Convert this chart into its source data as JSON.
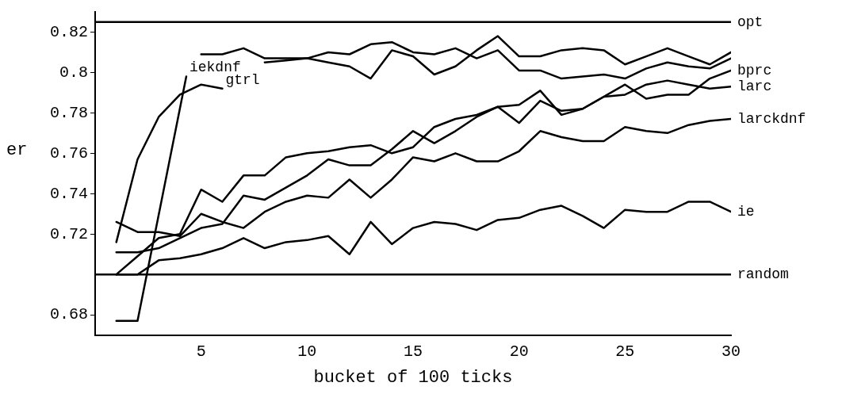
{
  "chart_data": {
    "type": "line",
    "xlabel": "bucket of 100 ticks",
    "ylabel": "er",
    "marker": "none",
    "x": [
      1,
      2,
      3,
      4,
      5,
      6,
      7,
      8,
      9,
      10,
      11,
      12,
      13,
      14,
      15,
      16,
      17,
      18,
      19,
      20,
      21,
      22,
      23,
      24,
      25,
      26,
      27,
      28,
      29,
      30
    ],
    "xlim": [
      0,
      30
    ],
    "xticks": [
      5,
      10,
      15,
      20,
      25,
      30
    ],
    "ylim": [
      0.67,
      0.83
    ],
    "yticks": [
      0.68,
      0.72,
      0.74,
      0.76,
      0.78,
      {
        "value": 0.8,
        "label": "0.8"
      },
      0.82
    ],
    "series": [
      {
        "name": "opt",
        "color": "#000000",
        "x": [
          0,
          30
        ],
        "values": [
          0.825,
          0.825
        ]
      },
      {
        "name": "gtrl",
        "color": "#000000",
        "values": [
          0.716,
          0.757,
          0.778,
          0.789,
          0.794,
          0.792,
          null,
          0.805,
          0.806,
          0.807,
          0.805,
          0.803,
          0.797,
          0.811,
          0.808,
          0.799,
          0.803,
          0.811,
          0.818,
          0.808,
          0.808,
          0.811,
          0.812,
          0.811,
          0.804,
          0.808,
          0.812,
          0.808,
          0.804,
          0.81
        ]
      },
      {
        "name": "iekdnf",
        "color": "#000000",
        "x": [
          1,
          2,
          4.3,
          4.6,
          5,
          6,
          7,
          8,
          9,
          10,
          11,
          12,
          13,
          14,
          15,
          16,
          17,
          18,
          19,
          20,
          21,
          22,
          23,
          24,
          25,
          26,
          27,
          28,
          29,
          30
        ],
        "values": [
          0.677,
          0.677,
          0.798,
          null,
          0.809,
          0.809,
          0.812,
          0.807,
          0.807,
          0.807,
          0.81,
          0.809,
          0.814,
          0.815,
          0.81,
          0.809,
          0.812,
          0.807,
          0.811,
          0.801,
          0.801,
          0.797,
          0.798,
          0.799,
          0.797,
          0.802,
          0.805,
          0.803,
          0.802,
          0.807
        ]
      },
      {
        "name": "bprc",
        "color": "#000000",
        "values": [
          0.711,
          0.711,
          0.713,
          0.718,
          0.723,
          0.725,
          0.739,
          0.737,
          0.743,
          0.749,
          0.757,
          0.754,
          0.754,
          0.762,
          0.771,
          0.765,
          0.771,
          0.778,
          0.783,
          0.775,
          0.786,
          0.781,
          0.782,
          0.788,
          0.794,
          0.787,
          0.789,
          0.789,
          0.797,
          0.801
        ]
      },
      {
        "name": "larc",
        "color": "#000000",
        "values": [
          0.7,
          0.709,
          0.718,
          0.72,
          0.742,
          0.736,
          0.749,
          0.749,
          0.758,
          0.76,
          0.761,
          0.763,
          0.764,
          0.76,
          0.763,
          0.773,
          0.777,
          0.779,
          0.783,
          0.784,
          0.791,
          0.779,
          0.782,
          0.788,
          0.789,
          0.794,
          0.796,
          0.794,
          0.792,
          0.793
        ]
      },
      {
        "name": "larckdnf",
        "color": "#000000",
        "values": [
          0.726,
          0.721,
          0.721,
          0.719,
          0.73,
          0.726,
          0.723,
          0.731,
          0.736,
          0.739,
          0.738,
          0.747,
          0.738,
          0.747,
          0.758,
          0.756,
          0.76,
          0.756,
          0.756,
          0.761,
          0.771,
          0.768,
          0.766,
          0.766,
          0.773,
          0.771,
          0.77,
          0.774,
          0.776,
          0.777
        ]
      },
      {
        "name": "ie",
        "color": "#000000",
        "values": [
          0.7,
          0.7,
          0.707,
          0.708,
          0.71,
          0.713,
          0.718,
          0.713,
          0.716,
          0.717,
          0.719,
          0.71,
          0.726,
          0.715,
          0.723,
          0.726,
          0.725,
          0.722,
          0.727,
          0.728,
          0.732,
          0.734,
          0.729,
          0.723,
          0.732,
          0.731,
          0.731,
          0.736,
          0.736,
          0.731
        ]
      },
      {
        "name": "random",
        "color": "#000000",
        "x": [
          0,
          30
        ],
        "values": [
          0.7,
          0.7
        ]
      }
    ]
  }
}
